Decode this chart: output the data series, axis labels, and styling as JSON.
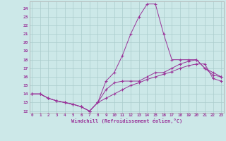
{
  "xlabel": "Windchill (Refroidissement éolien,°C)",
  "background_color": "#cce8e8",
  "line_color": "#993399",
  "grid_color": "#aacccc",
  "xlim": [
    0,
    23
  ],
  "ylim": [
    12,
    24.5
  ],
  "yticks": [
    12,
    13,
    14,
    15,
    16,
    17,
    18,
    19,
    20,
    21,
    22,
    23,
    24
  ],
  "xticks": [
    0,
    1,
    2,
    3,
    4,
    5,
    6,
    7,
    8,
    9,
    10,
    11,
    12,
    13,
    14,
    15,
    16,
    17,
    18,
    19,
    20,
    21,
    22,
    23
  ],
  "series_peak_x": [
    0,
    1,
    2,
    3,
    4,
    5,
    6,
    7,
    8,
    9,
    10,
    11,
    12,
    13,
    14,
    15,
    16,
    17,
    18,
    19,
    20,
    21,
    22,
    23
  ],
  "series_peak_y": [
    14,
    14,
    13.5,
    13.2,
    13,
    12.8,
    12.5,
    12,
    13,
    15.5,
    16.5,
    18.5,
    21,
    23,
    24.5,
    24.5,
    21,
    18,
    18,
    18,
    18,
    17,
    16.5,
    16
  ],
  "series_mid_x": [
    0,
    1,
    2,
    3,
    4,
    5,
    6,
    7,
    8,
    9,
    10,
    11,
    12,
    13,
    14,
    15,
    16,
    17,
    18,
    19,
    20,
    21,
    22,
    23
  ],
  "series_mid_y": [
    14,
    14,
    13.5,
    13.2,
    13,
    12.8,
    12.5,
    12,
    13,
    14.5,
    15.3,
    15.5,
    15.5,
    15.5,
    16,
    16.5,
    16.5,
    17,
    17.5,
    17.8,
    18,
    17,
    16.2,
    16
  ],
  "series_low_x": [
    0,
    1,
    2,
    3,
    4,
    5,
    6,
    7,
    8,
    9,
    10,
    11,
    12,
    13,
    14,
    15,
    16,
    17,
    18,
    19,
    20,
    21,
    22,
    23
  ],
  "series_low_y": [
    14,
    14,
    13.5,
    13.2,
    13,
    12.8,
    12.5,
    12,
    13,
    13.5,
    14,
    14.5,
    15,
    15.3,
    15.7,
    16,
    16.3,
    16.6,
    17,
    17.3,
    17.5,
    17.5,
    15.8,
    15.5
  ]
}
